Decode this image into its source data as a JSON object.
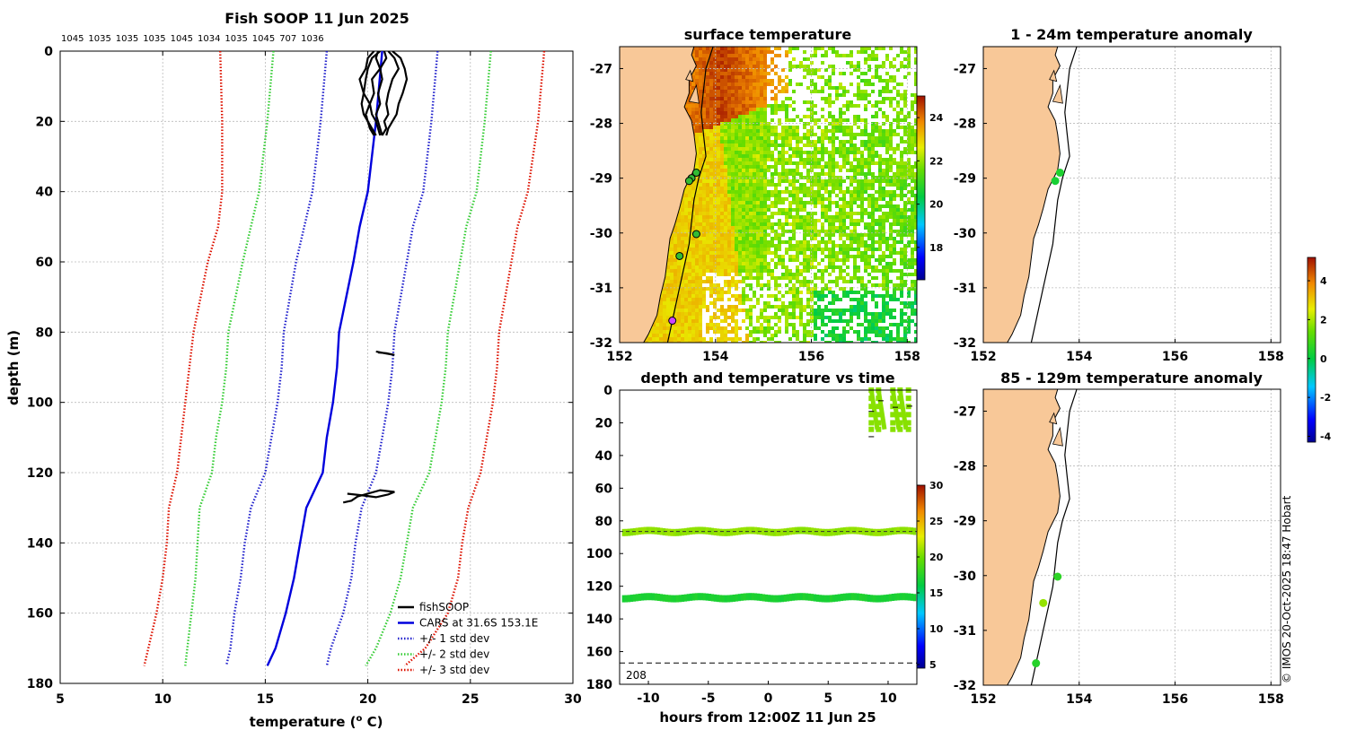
{
  "page": {
    "title_main": "Fish SOOP 11 Jun 2025",
    "credit": "© IMOS 20-Oct-2025 18:47 Hobart"
  },
  "colors": {
    "fishsoop": "#000000",
    "cars": "#0000dd",
    "std1": "#2020cc",
    "std2": "#33cc33",
    "std3": "#dd1100",
    "land": "#f8c898"
  },
  "chart_data": [
    {
      "type": "line",
      "title": "Fish SOOP 11 Jun 2025",
      "top_labels": [
        "1045",
        "1035",
        "1035",
        "1035",
        "1045",
        "1034",
        "1035",
        "1045",
        "707",
        "1036"
      ],
      "xlabel": "temperature (o C)",
      "xlabel_main": "temperature (",
      "xlabel_sup": "o",
      "xlabel_end": " C)",
      "ylabel": "depth (m)",
      "xlim": [
        5,
        30
      ],
      "ylim": [
        180,
        0
      ],
      "xticks": [
        5,
        10,
        15,
        20,
        25,
        30
      ],
      "yticks": [
        0,
        20,
        40,
        60,
        80,
        100,
        120,
        140,
        160,
        180
      ],
      "grid": true,
      "legend_position": "bottom-right",
      "depth": [
        0,
        20,
        40,
        50,
        60,
        80,
        90,
        100,
        110,
        120,
        130,
        140,
        150,
        160,
        170,
        175
      ],
      "series": [
        {
          "name": "fishSOOP",
          "style": "solid-black"
        },
        {
          "name": "CARS at 31.6S 153.1E",
          "style": "solid",
          "values": [
            20.7,
            20.4,
            20.0,
            19.6,
            19.3,
            18.6,
            18.5,
            18.3,
            18.0,
            17.8,
            17.0,
            16.7,
            16.4,
            16.0,
            15.5,
            15.1
          ]
        },
        {
          "name": "+/- 1 std dev",
          "style": "dotted",
          "lower": [
            18.0,
            17.7,
            17.3,
            16.9,
            16.5,
            15.9,
            15.8,
            15.6,
            15.3,
            15.0,
            14.3,
            14.0,
            13.8,
            13.5,
            13.3,
            13.1
          ],
          "upper": [
            23.4,
            23.1,
            22.7,
            22.2,
            21.9,
            21.3,
            21.2,
            21.0,
            20.7,
            20.4,
            19.7,
            19.4,
            19.2,
            18.8,
            18.2,
            18.0
          ]
        },
        {
          "name": "+/- 2 std dev",
          "style": "dotted",
          "lower": [
            15.4,
            15.1,
            14.7,
            14.3,
            13.9,
            13.2,
            13.1,
            12.9,
            12.6,
            12.4,
            11.8,
            11.7,
            11.6,
            11.4,
            11.2,
            11.1
          ],
          "upper": [
            26.0,
            25.7,
            25.3,
            24.8,
            24.5,
            23.9,
            23.8,
            23.6,
            23.3,
            23.0,
            22.2,
            21.9,
            21.6,
            21.1,
            20.4,
            19.9
          ]
        },
        {
          "name": "+/- 3 std dev",
          "style": "dotted",
          "lower": [
            12.8,
            12.9,
            12.9,
            12.7,
            12.2,
            11.5,
            11.3,
            11.1,
            10.9,
            10.7,
            10.3,
            10.2,
            10.0,
            9.7,
            9.3,
            9.1
          ],
          "upper": [
            28.6,
            28.3,
            27.8,
            27.3,
            27.0,
            26.4,
            26.3,
            26.1,
            25.8,
            25.5,
            24.9,
            24.6,
            24.4,
            23.9,
            22.8,
            21.8
          ]
        }
      ],
      "fishsoop_depth": [
        0,
        2,
        5,
        8,
        12,
        15,
        18,
        20,
        22,
        24
      ],
      "fishsoop_casts": [
        [
          20.8,
          20.9,
          20.6,
          20.7,
          20.5,
          20.6,
          20.4,
          20.5,
          20.6,
          20.7
        ],
        [
          20.5,
          20.4,
          20.6,
          20.2,
          20.3,
          20.1,
          20.2,
          20.4,
          20.5,
          20.6
        ],
        [
          21.0,
          21.3,
          21.5,
          21.2,
          21.0,
          20.9,
          21.0,
          20.8,
          20.9,
          20.7
        ],
        [
          20.6,
          20.2,
          20.0,
          19.9,
          19.8,
          20.1,
          19.9,
          20.0,
          20.2,
          20.4
        ],
        [
          21.2,
          21.6,
          21.8,
          21.9,
          21.7,
          21.5,
          21.4,
          21.2,
          21.0,
          20.9
        ],
        [
          20.3,
          20.0,
          19.9,
          19.6,
          19.8,
          19.7,
          19.8,
          20.0,
          20.1,
          20.3
        ]
      ],
      "fishsoop_mid_depth": [
        85.5,
        86,
        86.5,
        86,
        85.8
      ],
      "fishsoop_mid_temp": [
        20.4,
        20.8,
        21.3,
        20.9,
        20.5
      ],
      "fishsoop_deep_depth": [
        126.0,
        126.5,
        127.0,
        126.2,
        125.5,
        125.0,
        126.8,
        128.0,
        128.5
      ],
      "fishsoop_deep_temp": [
        19.0,
        19.8,
        20.4,
        21.0,
        21.3,
        20.6,
        19.5,
        19.2,
        18.8
      ]
    },
    {
      "type": "heatmap",
      "title": "surface temperature",
      "xlim": [
        152,
        158.2
      ],
      "ylim": [
        -32,
        -26.6
      ],
      "xticks": [
        152,
        154,
        156,
        158
      ],
      "yticks": [
        -27,
        -28,
        -29,
        -30,
        -31,
        -32
      ],
      "colorbar_ticks": [
        18,
        20,
        22,
        24
      ],
      "colorbar_range": [
        16.5,
        25
      ],
      "points": [
        {
          "lon": 153.6,
          "lat": -28.9
        },
        {
          "lon": 153.5,
          "lat": -29.0
        },
        {
          "lon": 153.45,
          "lat": -29.05
        },
        {
          "lon": 153.6,
          "lat": -30.02
        },
        {
          "lon": 153.25,
          "lat": -30.42
        },
        {
          "lon": 153.1,
          "lat": -31.6
        }
      ]
    },
    {
      "type": "scatter",
      "title": "1 - 24m temperature anomaly",
      "xlim": [
        152,
        158.2
      ],
      "ylim": [
        -32,
        -26.6
      ],
      "xticks": [
        152,
        154,
        156,
        158
      ],
      "yticks": [
        -27,
        -28,
        -29,
        -30,
        -31,
        -32
      ],
      "points": [
        {
          "lon": 153.6,
          "lat": -28.9,
          "anomaly": 0.4
        },
        {
          "lon": 153.5,
          "lat": -29.05,
          "anomaly": 0.3
        }
      ]
    },
    {
      "type": "scatter",
      "title": "depth and temperature vs time",
      "xlabel": "hours from 12:00Z 11 Jun 25",
      "xlim": [
        -12.4,
        12.4
      ],
      "ylim": [
        180,
        0
      ],
      "xticks": [
        -10,
        -5,
        0,
        5,
        10
      ],
      "yticks": [
        0,
        20,
        40,
        60,
        80,
        100,
        120,
        140,
        160,
        180
      ],
      "colorbar_ticks": [
        5,
        10,
        15,
        20,
        25,
        30
      ],
      "colorbar_range": [
        4.5,
        30
      ],
      "bottom_depth_label": "208",
      "bottom_depth_line": 167,
      "bands": [
        {
          "depth": 86.5,
          "temperature": 20.8
        },
        {
          "depth": 127.0,
          "temperature": 17.0
        }
      ],
      "near_surface_temperature": 20.6
    },
    {
      "type": "scatter",
      "title": "85 - 129m temperature anomaly",
      "xlim": [
        152,
        158.2
      ],
      "ylim": [
        -32,
        -26.6
      ],
      "xticks": [
        152,
        154,
        156,
        158
      ],
      "yticks": [
        -27,
        -28,
        -29,
        -30,
        -31,
        -32
      ],
      "points": [
        {
          "lon": 153.55,
          "lat": -30.02,
          "anomaly": 0.6
        },
        {
          "lon": 153.25,
          "lat": -30.5,
          "anomaly": 1.8
        },
        {
          "lon": 153.1,
          "lat": -31.6,
          "anomaly": 0.5
        }
      ],
      "colorbar_ticks": [
        -4,
        -2,
        0,
        2,
        4
      ],
      "colorbar_range": [
        -4.3,
        5.2
      ]
    }
  ]
}
